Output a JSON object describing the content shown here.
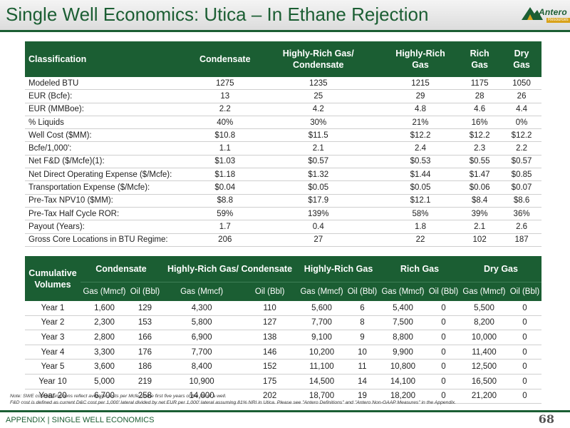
{
  "header": {
    "title": "Single Well Economics: Utica – In Ethane Rejection",
    "logo_text": "Antero",
    "logo_sub": "Resources"
  },
  "table1": {
    "headers": [
      "Classification",
      "Condensate",
      "Highly-Rich Gas/ Condensate",
      "Highly-Rich Gas",
      "Rich Gas",
      "Dry Gas"
    ],
    "rows": [
      {
        "label": "Modeled BTU",
        "values": [
          "1275",
          "1235",
          "1215",
          "1175",
          "1050"
        ]
      },
      {
        "label": "EUR (Bcfe):",
        "values": [
          "13",
          "25",
          "29",
          "28",
          "26"
        ]
      },
      {
        "label": "EUR (MMBoe):",
        "values": [
          "2.2",
          "4.2",
          "4.8",
          "4.6",
          "4.4"
        ]
      },
      {
        "label": "% Liquids",
        "values": [
          "40%",
          "30%",
          "21%",
          "16%",
          "0%"
        ]
      },
      {
        "label": "Well Cost ($MM):",
        "values": [
          "$10.8",
          "$11.5",
          "$12.2",
          "$12.2",
          "$12.2"
        ]
      },
      {
        "label": "Bcfe/1,000':",
        "values": [
          "1.1",
          "2.1",
          "2.4",
          "2.3",
          "2.2"
        ]
      },
      {
        "label": "Net F&D ($/Mcfe)(1):",
        "values": [
          "$1.03",
          "$0.57",
          "$0.53",
          "$0.55",
          "$0.57"
        ]
      },
      {
        "label": "Net Direct Operating Expense ($/Mcfe):",
        "values": [
          "$1.18",
          "$1.32",
          "$1.44",
          "$1.47",
          "$0.85"
        ]
      },
      {
        "label": "Transportation Expense ($/Mcfe):",
        "values": [
          "$0.04",
          "$0.05",
          "$0.05",
          "$0.06",
          "$0.07"
        ]
      },
      {
        "label": "Pre-Tax NPV10 ($MM):",
        "values": [
          "$8.8",
          "$17.9",
          "$12.1",
          "$8.4",
          "$8.6"
        ]
      },
      {
        "label": "Pre-Tax Half Cycle ROR:",
        "values": [
          "59%",
          "139%",
          "58%",
          "39%",
          "36%"
        ]
      },
      {
        "label": "Payout (Years):",
        "values": [
          "1.7",
          "0.4",
          "1.8",
          "2.1",
          "2.6"
        ]
      },
      {
        "label": "Gross Core Locations in BTU Regime:",
        "values": [
          "206",
          "27",
          "22",
          "102",
          "187"
        ]
      }
    ]
  },
  "table2": {
    "row_header": "Cumulative Volumes",
    "groups": [
      "Condensate",
      "Highly-Rich Gas/ Condensate",
      "Highly-Rich Gas",
      "Rich Gas",
      "Dry Gas"
    ],
    "gas_label": "Gas (Mmcf)",
    "oil_label": "Oil (Bbl)",
    "rows": [
      {
        "label": "Year 1",
        "values": [
          "1,600",
          "129",
          "4,300",
          "110",
          "5,600",
          "6",
          "5,400",
          "0",
          "5,500",
          "0"
        ]
      },
      {
        "label": "Year 2",
        "values": [
          "2,300",
          "153",
          "5,800",
          "127",
          "7,700",
          "8",
          "7,500",
          "0",
          "8,200",
          "0"
        ]
      },
      {
        "label": "Year 3",
        "values": [
          "2,800",
          "166",
          "6,900",
          "138",
          "9,100",
          "9",
          "8,800",
          "0",
          "10,000",
          "0"
        ]
      },
      {
        "label": "Year 4",
        "values": [
          "3,300",
          "176",
          "7,700",
          "146",
          "10,200",
          "10",
          "9,900",
          "0",
          "11,400",
          "0"
        ]
      },
      {
        "label": "Year 5",
        "values": [
          "3,600",
          "186",
          "8,400",
          "152",
          "11,100",
          "11",
          "10,800",
          "0",
          "12,500",
          "0"
        ]
      },
      {
        "label": "Year 10",
        "values": [
          "5,000",
          "219",
          "10,900",
          "175",
          "14,500",
          "14",
          "14,100",
          "0",
          "16,500",
          "0"
        ]
      },
      {
        "label": "Year 20",
        "values": [
          "6,700",
          "258",
          "14,000",
          "202",
          "18,700",
          "19",
          "18,200",
          "0",
          "21,200",
          "0"
        ]
      }
    ]
  },
  "notes": {
    "line1": "Note: SWE cost assumptions reflect average costs per Mcfe on the first five years of the life of a well.",
    "line2": "F&D cost is defined as current D&C cost per 1,000' lateral divided by net EUR per 1,000' lateral assuming 81% NRI in Utica. Please see \"Antero Definitions\" and \"Antero Non-GAAP Measures\" in the Appendix."
  },
  "footer": {
    "section": "APPENDIX | SINGLE WELL ECONOMICS",
    "page": "68"
  },
  "colors": {
    "brand_green": "#1b5e33",
    "logo_gold": "#d8a21a"
  }
}
